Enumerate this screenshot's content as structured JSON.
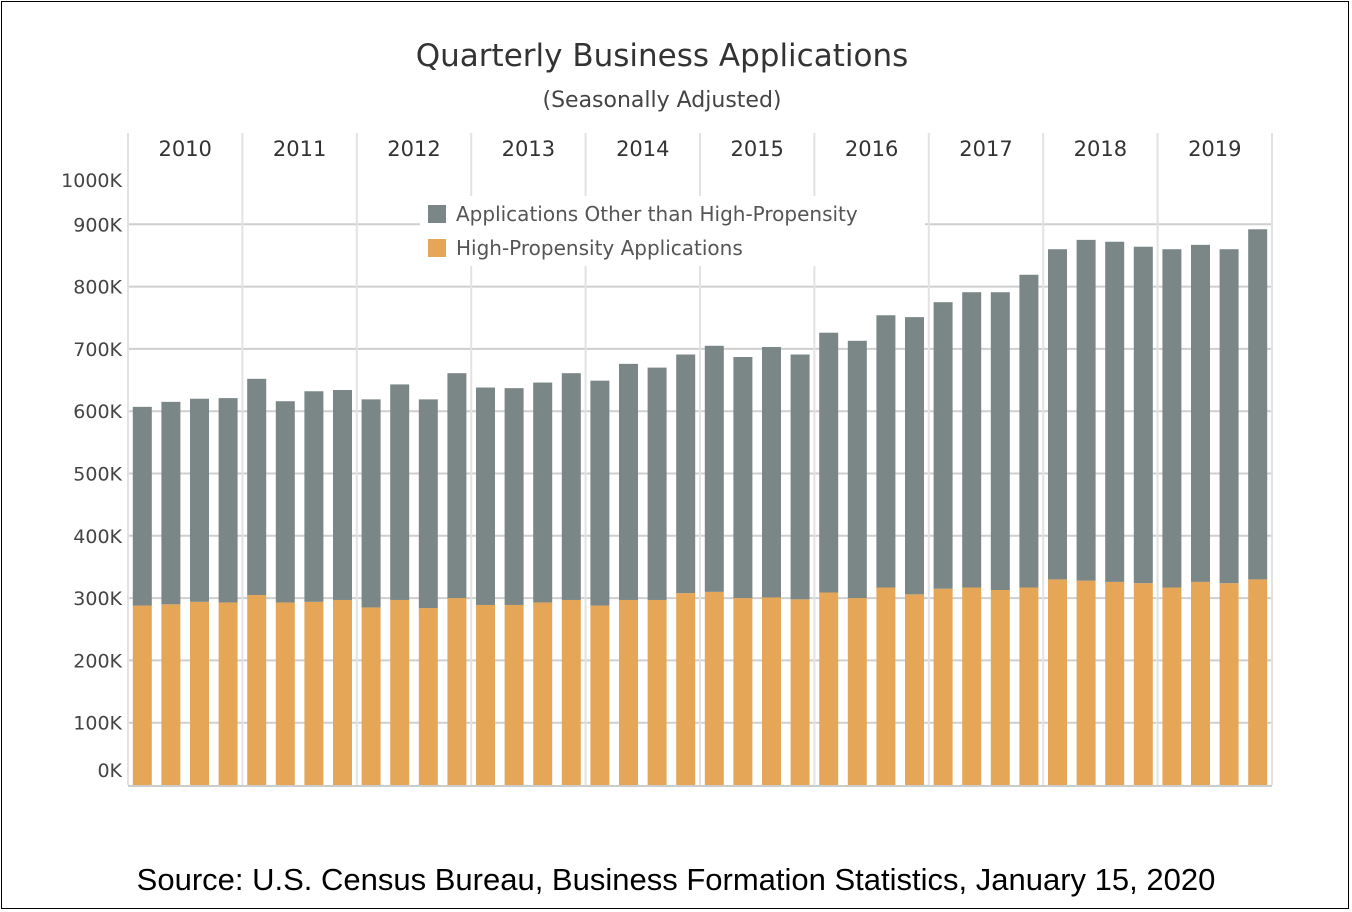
{
  "chart_data": {
    "type": "bar",
    "stacked": true,
    "title": "Quarterly Business Applications",
    "subtitle": "(Seasonally Adjusted)",
    "source": "Source: U.S. Census Bureau, Business Formation Statistics, January 15, 2020",
    "years": [
      "2010",
      "2011",
      "2012",
      "2013",
      "2014",
      "2015",
      "2016",
      "2017",
      "2018",
      "2019"
    ],
    "quarters_per_year": 4,
    "ylim": [
      0,
      1000
    ],
    "yunit": "K",
    "yticks": [
      0,
      100,
      200,
      300,
      400,
      500,
      600,
      700,
      800,
      900,
      1000
    ],
    "ytick_labels": [
      "0K",
      "100K",
      "200K",
      "300K",
      "400K",
      "500K",
      "600K",
      "700K",
      "800K",
      "900K",
      "1000K"
    ],
    "grid": true,
    "legend_placement": "top-center",
    "series": [
      {
        "name": "High-Propensity Applications",
        "color": "#e5a757",
        "values": [
          288,
          290,
          294,
          293,
          305,
          293,
          294,
          297,
          285,
          297,
          284,
          300,
          289,
          289,
          293,
          297,
          288,
          297,
          297,
          308,
          310,
          300,
          301,
          298,
          309,
          300,
          317,
          306,
          315,
          317,
          313,
          317,
          330,
          328,
          326,
          324,
          317,
          326,
          324,
          330
        ]
      },
      {
        "name": "Applications Other than High-Propensity",
        "color": "#7b8787",
        "values": [
          319,
          325,
          326,
          328,
          347,
          323,
          338,
          337,
          334,
          346,
          335,
          361,
          349,
          348,
          353,
          364,
          361,
          379,
          373,
          383,
          395,
          387,
          402,
          393,
          417,
          413,
          437,
          445,
          460,
          474,
          478,
          502,
          530,
          547,
          546,
          540,
          543,
          541,
          536,
          562
        ]
      }
    ]
  }
}
